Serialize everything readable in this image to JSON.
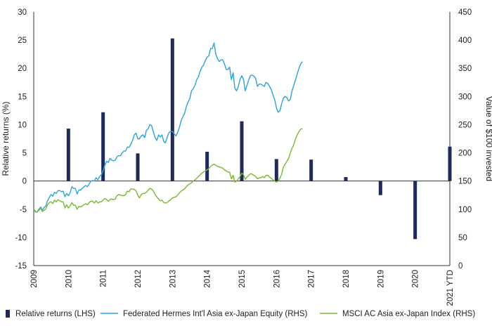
{
  "chart_data": {
    "type": "bar+line",
    "title": "",
    "x_ticks": [
      "2009",
      "2010",
      "2011",
      "2012",
      "2013",
      "2014",
      "2015",
      "2016",
      "2017",
      "2018",
      "2019",
      "2020",
      "2021 YTD"
    ],
    "left_axis": {
      "label": "Relative returns (%)",
      "min": -15,
      "max": 30,
      "ticks": [
        30,
        25,
        20,
        15,
        10,
        5,
        0,
        -5,
        -10,
        -15
      ]
    },
    "right_axis": {
      "label": "Value of $100 invested",
      "min": 0,
      "max": 450,
      "ticks": [
        450,
        400,
        350,
        300,
        250,
        200,
        150,
        100,
        50,
        0
      ]
    },
    "bars": {
      "name": "Relative returns (LHS)",
      "color": "#1f2a5c",
      "values": [
        9.3,
        12.2,
        4.9,
        25.3,
        5.2,
        10.6,
        3.9,
        3.8,
        0.7,
        -2.5,
        -10.3,
        6.1
      ]
    },
    "series": [
      {
        "name": "Federated Hermes Int'l Asia ex-Japan Equity (RHS)",
        "color": "#29a3dd",
        "axis": "right",
        "points": [
          [
            0.0,
            100
          ],
          [
            0.1,
            95
          ],
          [
            0.2,
            95
          ],
          [
            0.3,
            100
          ],
          [
            0.4,
            104
          ],
          [
            0.5,
            98
          ],
          [
            0.6,
            103
          ],
          [
            0.7,
            106
          ],
          [
            0.8,
            115
          ],
          [
            0.9,
            121
          ],
          [
            1.0,
            126
          ],
          [
            1.1,
            123
          ],
          [
            1.2,
            130
          ],
          [
            1.3,
            128
          ],
          [
            1.4,
            133
          ],
          [
            1.5,
            133
          ],
          [
            1.6,
            131
          ],
          [
            1.7,
            132
          ],
          [
            1.8,
            122
          ],
          [
            1.9,
            128
          ],
          [
            2.0,
            124
          ],
          [
            2.1,
            129
          ],
          [
            2.2,
            140
          ],
          [
            2.3,
            137
          ],
          [
            2.4,
            137
          ],
          [
            2.5,
            127
          ],
          [
            2.6,
            134
          ],
          [
            2.7,
            134
          ],
          [
            2.8,
            137
          ],
          [
            2.9,
            140
          ],
          [
            3.0,
            142
          ],
          [
            3.1,
            140
          ],
          [
            3.2,
            145
          ],
          [
            3.3,
            150
          ],
          [
            3.4,
            151
          ],
          [
            3.5,
            150
          ],
          [
            3.6,
            156
          ],
          [
            3.7,
            152
          ],
          [
            3.8,
            158
          ],
          [
            3.9,
            161
          ],
          [
            4.0,
            168
          ],
          [
            4.1,
            178
          ],
          [
            4.2,
            185
          ],
          [
            4.3,
            183
          ],
          [
            4.4,
            190
          ],
          [
            4.5,
            187
          ],
          [
            4.6,
            186
          ],
          [
            4.7,
            187
          ],
          [
            4.8,
            193
          ],
          [
            4.9,
            195
          ],
          [
            5.0,
            195
          ],
          [
            5.1,
            200
          ],
          [
            5.2,
            203
          ],
          [
            5.3,
            203
          ],
          [
            5.4,
            210
          ],
          [
            5.5,
            210
          ],
          [
            5.6,
            215
          ],
          [
            5.7,
            222
          ],
          [
            5.8,
            232
          ],
          [
            5.9,
            235
          ],
          [
            6.0,
            225
          ],
          [
            6.1,
            225
          ],
          [
            6.2,
            230
          ],
          [
            6.3,
            232
          ],
          [
            6.4,
            227
          ],
          [
            6.5,
            240
          ],
          [
            6.6,
            243
          ],
          [
            6.7,
            250
          ],
          [
            6.8,
            248
          ],
          [
            6.9,
            237
          ],
          [
            7.0,
            227
          ],
          [
            7.1,
            222
          ],
          [
            7.2,
            232
          ],
          [
            7.3,
            228
          ],
          [
            7.4,
            232
          ],
          [
            7.5,
            220
          ],
          [
            7.6,
            218
          ],
          [
            7.7,
            228
          ],
          [
            7.8,
            236
          ],
          [
            7.9,
            238
          ],
          [
            8.0,
            238
          ],
          [
            8.1,
            234
          ],
          [
            8.2,
            230
          ],
          [
            8.3,
            236
          ],
          [
            8.4,
            245
          ],
          [
            8.5,
            257
          ],
          [
            8.6,
            264
          ],
          [
            8.7,
            270
          ],
          [
            8.8,
            282
          ],
          [
            8.9,
            290
          ],
          [
            9.0,
            296
          ],
          [
            9.1,
            310
          ],
          [
            9.2,
            314
          ],
          [
            9.3,
            320
          ],
          [
            9.4,
            330
          ],
          [
            9.5,
            335
          ],
          [
            9.6,
            345
          ],
          [
            9.7,
            352
          ],
          [
            9.8,
            356
          ],
          [
            9.9,
            364
          ],
          [
            10.0,
            370
          ],
          [
            10.1,
            372
          ],
          [
            10.2,
            385
          ],
          [
            10.3,
            385
          ],
          [
            10.4,
            395
          ],
          [
            10.5,
            375
          ],
          [
            10.6,
            367
          ],
          [
            10.7,
            362
          ],
          [
            10.8,
            365
          ],
          [
            10.9,
            365
          ],
          [
            11.0,
            358
          ],
          [
            11.1,
            348
          ],
          [
            11.2,
            348
          ],
          [
            11.3,
            352
          ],
          [
            11.4,
            330
          ],
          [
            11.5,
            342
          ],
          [
            11.6,
            315
          ],
          [
            11.7,
            310
          ],
          [
            11.8,
            318
          ],
          [
            11.9,
            330
          ],
          [
            12.0,
            337
          ],
          [
            12.1,
            330
          ],
          [
            12.2,
            310
          ],
          [
            12.3,
            320
          ],
          [
            12.4,
            330
          ],
          [
            12.5,
            337
          ],
          [
            12.6,
            338
          ],
          [
            12.7,
            336
          ],
          [
            12.8,
            332
          ],
          [
            12.9,
            318
          ],
          [
            13.0,
            322
          ],
          [
            13.1,
            322
          ],
          [
            13.2,
            320
          ],
          [
            13.3,
            318
          ],
          [
            13.4,
            325
          ],
          [
            13.5,
            323
          ],
          [
            13.6,
            318
          ],
          [
            13.7,
            312
          ],
          [
            13.8,
            303
          ],
          [
            13.9,
            294
          ],
          [
            14.0,
            280
          ],
          [
            14.1,
            272
          ],
          [
            14.2,
            275
          ],
          [
            14.3,
            287
          ],
          [
            14.4,
            297
          ],
          [
            14.5,
            300
          ],
          [
            14.6,
            298
          ],
          [
            14.7,
            292
          ],
          [
            14.8,
            295
          ],
          [
            14.9,
            310
          ],
          [
            15.0,
            320
          ],
          [
            15.1,
            330
          ],
          [
            15.2,
            340
          ],
          [
            15.3,
            350
          ],
          [
            15.4,
            358
          ],
          [
            15.5,
            362
          ]
        ]
      },
      {
        "name": "MSCI AC Asia ex-Japan Index (RHS)",
        "color": "#7ab92e",
        "axis": "right",
        "points": [
          [
            0.0,
            100
          ],
          [
            0.1,
            96
          ],
          [
            0.2,
            95
          ],
          [
            0.3,
            98
          ],
          [
            0.4,
            102
          ],
          [
            0.5,
            96
          ],
          [
            0.6,
            98
          ],
          [
            0.7,
            101
          ],
          [
            0.8,
            108
          ],
          [
            0.9,
            112
          ],
          [
            1.0,
            113
          ],
          [
            1.1,
            110
          ],
          [
            1.2,
            116
          ],
          [
            1.3,
            113
          ],
          [
            1.4,
            117
          ],
          [
            1.5,
            115
          ],
          [
            1.6,
            113
          ],
          [
            1.7,
            113
          ],
          [
            1.8,
            102
          ],
          [
            1.9,
            108
          ],
          [
            2.0,
            102
          ],
          [
            2.1,
            106
          ],
          [
            2.2,
            112
          ],
          [
            2.3,
            107
          ],
          [
            2.4,
            107
          ],
          [
            2.5,
            100
          ],
          [
            2.6,
            105
          ],
          [
            2.7,
            104
          ],
          [
            2.8,
            106
          ],
          [
            2.9,
            108
          ],
          [
            3.0,
            110
          ],
          [
            3.1,
            108
          ],
          [
            3.2,
            112
          ],
          [
            3.3,
            114
          ],
          [
            3.4,
            114
          ],
          [
            3.5,
            111
          ],
          [
            3.6,
            115
          ],
          [
            3.7,
            111
          ],
          [
            3.8,
            113
          ],
          [
            3.9,
            113
          ],
          [
            4.0,
            116
          ],
          [
            4.1,
            119
          ],
          [
            4.2,
            117
          ],
          [
            4.3,
            114
          ],
          [
            4.4,
            117
          ],
          [
            4.5,
            118
          ],
          [
            4.6,
            117
          ],
          [
            4.7,
            118
          ],
          [
            4.8,
            124
          ],
          [
            4.9,
            126
          ],
          [
            5.0,
            125
          ],
          [
            5.1,
            124
          ],
          [
            5.2,
            124
          ],
          [
            5.3,
            126
          ],
          [
            5.4,
            132
          ],
          [
            5.5,
            131
          ],
          [
            5.6,
            136
          ],
          [
            5.7,
            136
          ],
          [
            5.8,
            135
          ],
          [
            5.9,
            133
          ],
          [
            6.0,
            125
          ],
          [
            6.1,
            120
          ],
          [
            6.2,
            126
          ],
          [
            6.3,
            128
          ],
          [
            6.4,
            128
          ],
          [
            6.5,
            130
          ],
          [
            6.6,
            134
          ],
          [
            6.7,
            137
          ],
          [
            6.8,
            136
          ],
          [
            6.9,
            132
          ],
          [
            7.0,
            126
          ],
          [
            7.1,
            122
          ],
          [
            7.2,
            118
          ],
          [
            7.3,
            115
          ],
          [
            7.4,
            116
          ],
          [
            7.5,
            112
          ],
          [
            7.6,
            111
          ],
          [
            7.7,
            112
          ],
          [
            7.8,
            115
          ],
          [
            7.9,
            117
          ],
          [
            8.0,
            120
          ],
          [
            8.1,
            121
          ],
          [
            8.2,
            122
          ],
          [
            8.3,
            125
          ],
          [
            8.4,
            129
          ],
          [
            8.5,
            132
          ],
          [
            8.6,
            134
          ],
          [
            8.7,
            136
          ],
          [
            8.8,
            140
          ],
          [
            8.9,
            143
          ],
          [
            9.0,
            145
          ],
          [
            9.1,
            147
          ],
          [
            9.2,
            150
          ],
          [
            9.3,
            152
          ],
          [
            9.4,
            155
          ],
          [
            9.5,
            158
          ],
          [
            9.6,
            161
          ],
          [
            9.7,
            164
          ],
          [
            9.8,
            166
          ],
          [
            9.9,
            168
          ],
          [
            10.0,
            170
          ],
          [
            10.1,
            172
          ],
          [
            10.2,
            176
          ],
          [
            10.3,
            178
          ],
          [
            10.4,
            180
          ],
          [
            10.5,
            178
          ],
          [
            10.6,
            176
          ],
          [
            10.7,
            175
          ],
          [
            10.8,
            174
          ],
          [
            10.9,
            173
          ],
          [
            11.0,
            170
          ],
          [
            11.1,
            168
          ],
          [
            11.2,
            166
          ],
          [
            11.3,
            166
          ],
          [
            11.4,
            154
          ],
          [
            11.5,
            160
          ],
          [
            11.6,
            148
          ],
          [
            11.7,
            150
          ],
          [
            11.8,
            154
          ],
          [
            11.9,
            158
          ],
          [
            12.0,
            164
          ],
          [
            12.1,
            161
          ],
          [
            12.2,
            153
          ],
          [
            12.3,
            157
          ],
          [
            12.4,
            160
          ],
          [
            12.5,
            163
          ],
          [
            12.6,
            162
          ],
          [
            12.7,
            160
          ],
          [
            12.8,
            158
          ],
          [
            12.9,
            154
          ],
          [
            13.0,
            156
          ],
          [
            13.1,
            156
          ],
          [
            13.2,
            158
          ],
          [
            13.3,
            156
          ],
          [
            13.4,
            160
          ],
          [
            13.5,
            160
          ],
          [
            13.6,
            157
          ],
          [
            13.7,
            155
          ],
          [
            13.8,
            152
          ],
          [
            13.9,
            150
          ],
          [
            14.0,
            148
          ],
          [
            14.1,
            150
          ],
          [
            14.2,
            155
          ],
          [
            14.3,
            162
          ],
          [
            14.4,
            175
          ],
          [
            14.5,
            180
          ],
          [
            14.6,
            185
          ],
          [
            14.7,
            190
          ],
          [
            14.8,
            200
          ],
          [
            14.9,
            208
          ],
          [
            15.0,
            215
          ],
          [
            15.1,
            225
          ],
          [
            15.2,
            232
          ],
          [
            15.3,
            238
          ],
          [
            15.4,
            242
          ],
          [
            15.5,
            243
          ]
        ]
      }
    ],
    "legend": {
      "placement": "bottom"
    },
    "grid": false
  }
}
